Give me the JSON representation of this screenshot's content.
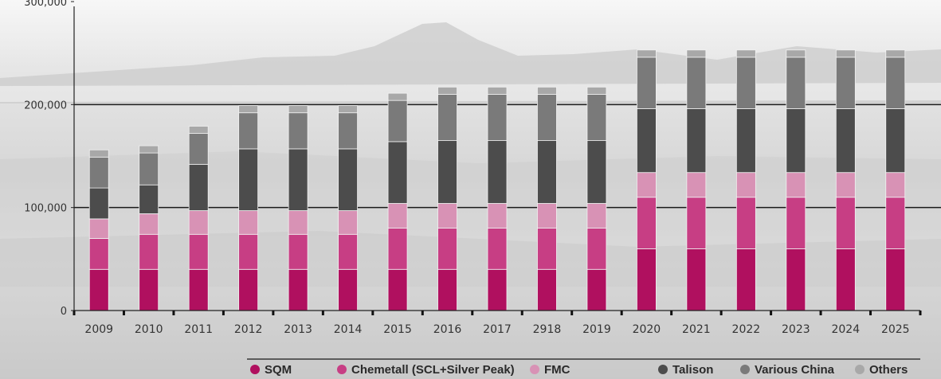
{
  "chart_data": {
    "type": "bar",
    "stacked": true,
    "categories": [
      "2009",
      "2010",
      "2011",
      "2012",
      "2013",
      "2014",
      "2015",
      "2016",
      "2017",
      "2918",
      "2019",
      "2020",
      "2021",
      "2022",
      "2023",
      "2024",
      "2025"
    ],
    "series": [
      {
        "name": "SQM",
        "color": "#b0105f",
        "values": [
          40000,
          40000,
          40000,
          40000,
          40000,
          40000,
          40000,
          40000,
          40000,
          40000,
          40000,
          60000,
          60000,
          60000,
          60000,
          60000,
          60000
        ]
      },
      {
        "name": "Chemetall (SCL+Silver Peak)",
        "color": "#c73e84",
        "values": [
          30000,
          34000,
          34000,
          34000,
          34000,
          34000,
          40000,
          40000,
          40000,
          40000,
          40000,
          50000,
          50000,
          50000,
          50000,
          50000,
          50000
        ]
      },
      {
        "name": "FMC",
        "color": "#d892b5",
        "values": [
          19000,
          20000,
          23000,
          23000,
          23000,
          23000,
          24000,
          24000,
          24000,
          24000,
          24000,
          24000,
          24000,
          24000,
          24000,
          24000,
          24000
        ]
      },
      {
        "name": "Talison",
        "color": "#4c4c4c",
        "values": [
          30000,
          28000,
          45000,
          60000,
          60000,
          60000,
          60000,
          61000,
          61000,
          61000,
          61000,
          62000,
          62000,
          62000,
          62000,
          62000,
          62000
        ]
      },
      {
        "name": "Various China",
        "color": "#7a7a7a",
        "values": [
          30000,
          31000,
          30000,
          35000,
          35000,
          35000,
          40000,
          45000,
          45000,
          45000,
          45000,
          50000,
          50000,
          50000,
          50000,
          50000,
          50000
        ]
      },
      {
        "name": "Others",
        "color": "#a8a8a8",
        "values": [
          7000,
          7000,
          7000,
          7000,
          7000,
          7000,
          7000,
          7000,
          7000,
          7000,
          7000,
          7000,
          7000,
          7000,
          7000,
          7000,
          7000
        ]
      }
    ],
    "yticks": [
      "0",
      "100,000",
      "200,000",
      "300,000"
    ],
    "ylim": [
      0,
      300000
    ],
    "reference_lines": [
      100000,
      200000
    ],
    "legend_position": "bottom"
  }
}
